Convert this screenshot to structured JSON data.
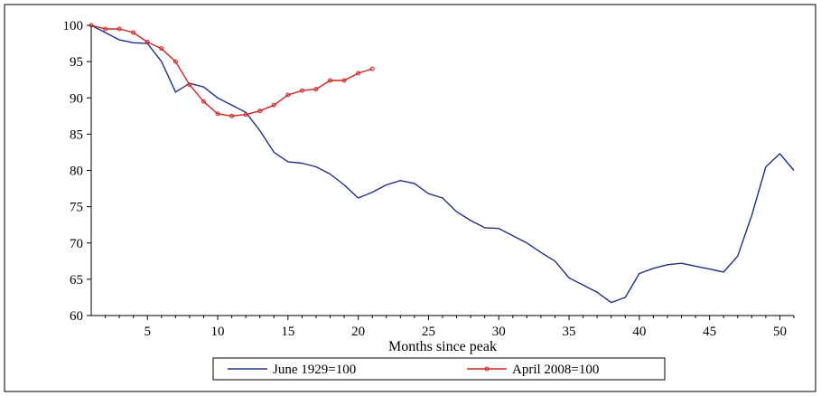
{
  "chart_data": {
    "type": "line",
    "xlabel": "Months since peak",
    "ylabel": "",
    "title": "",
    "xlim": [
      1,
      51
    ],
    "ylim": [
      60,
      100
    ],
    "xticks": [
      5,
      10,
      15,
      20,
      25,
      30,
      35,
      40,
      45,
      50
    ],
    "yticks": [
      60,
      65,
      70,
      75,
      80,
      85,
      90,
      95,
      100
    ],
    "legend_position": "bottom-center",
    "grid": false,
    "series": [
      {
        "name": "June 1929=100",
        "color": "#1f2f8a",
        "marker": "none",
        "x": [
          1,
          2,
          3,
          4,
          5,
          6,
          7,
          8,
          9,
          10,
          11,
          12,
          13,
          14,
          15,
          16,
          17,
          18,
          19,
          20,
          21,
          22,
          23,
          24,
          25,
          26,
          27,
          28,
          29,
          30,
          31,
          32,
          33,
          34,
          35,
          36,
          37,
          38,
          39,
          40,
          41,
          42,
          43,
          44,
          45,
          46,
          47,
          48,
          49,
          50,
          51
        ],
        "values": [
          100,
          99,
          98,
          97.6,
          97.5,
          95,
          90.8,
          92,
          91.5,
          90,
          89,
          88,
          85.5,
          82.5,
          81.2,
          81,
          80.5,
          79.5,
          78,
          76.2,
          77,
          78,
          78.6,
          78.2,
          76.8,
          76.2,
          74.3,
          73.1,
          72.1,
          72,
          71,
          70,
          68.7,
          67.5,
          65.2,
          64.2,
          63.2,
          61.8,
          62.5,
          65.8,
          66.5,
          67,
          67.2,
          66.8,
          66.4,
          66,
          68.2,
          73.8,
          80.5,
          82.3,
          80
        ]
      },
      {
        "name": "April 2008=100",
        "color": "#d42020",
        "marker": "circle",
        "x": [
          1,
          2,
          3,
          4,
          5,
          6,
          7,
          8,
          9,
          10,
          11,
          12,
          13,
          14,
          15,
          16,
          17,
          18,
          19,
          20,
          21
        ],
        "values": [
          100,
          99.5,
          99.5,
          99,
          97.7,
          96.8,
          95,
          91.8,
          89.5,
          87.8,
          87.5,
          87.7,
          88.2,
          89,
          90.4,
          91,
          91.2,
          92.4,
          92.4,
          93.4,
          94
        ]
      }
    ]
  }
}
